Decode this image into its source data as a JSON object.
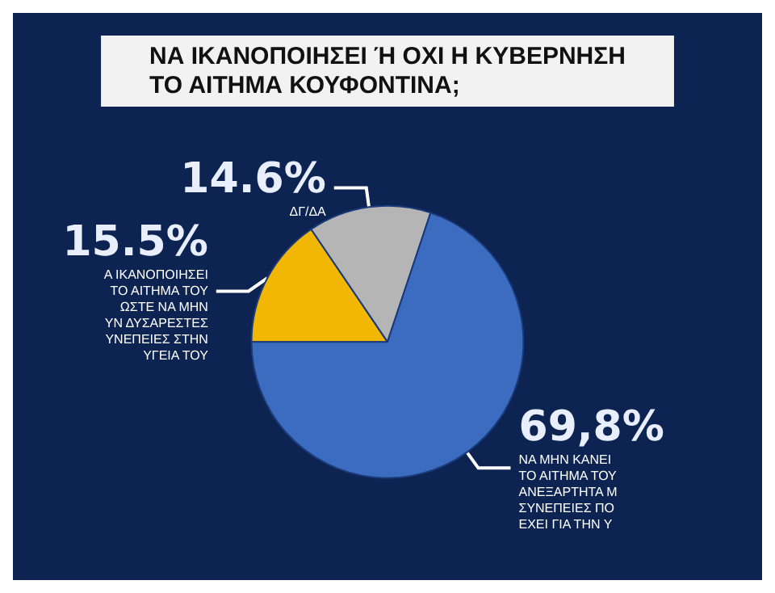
{
  "chart_data": {
    "type": "pie",
    "title": "ΝΑ ΙΚΑΝΟΠΟΙΗΣΕΙ Ή ΟΧΙ Η ΚΥΒΕΡΝΗΣΗ\nΤΟ ΑΙΤΗΜΑ ΚΟΥΦΟΝΤΙΝΑ;",
    "categories": [
      "Α ΙΚΑΝΟΠΟΙΗΣΕΙ\nΤΟ ΑΙΤΗΜΑ ΤΟΥ\nΩΣΤΕ ΝΑ ΜΗΝ\nΥΝ ΔΥΣΑΡΕΣΤΕΣ\nΥΝΕΠΕΙΕΣ ΣΤΗΝ\nΥΓΕΙΑ ΤΟΥ",
      "ΔΓ/ΔΑ",
      "ΝΑ ΜΗΝ ΚΑΝΕΙ\nΤΟ ΑΙΤΗΜΑ ΤΟΥ\nΑΝΕΞΑΡΤΗΤΑ Μ\nΣΥΝΕΠΕΙΕΣ ΠΟ\nΕΧΕΙ ΓΙΑ ΤΗΝ Υ"
    ],
    "values": [
      15.5,
      14.6,
      69.8
    ],
    "value_labels": [
      "15.5%",
      "14.6%",
      "69,8%"
    ],
    "colors": [
      "#f2b705",
      "#b5b5b5",
      "#3b6cc0"
    ],
    "legend": false
  }
}
